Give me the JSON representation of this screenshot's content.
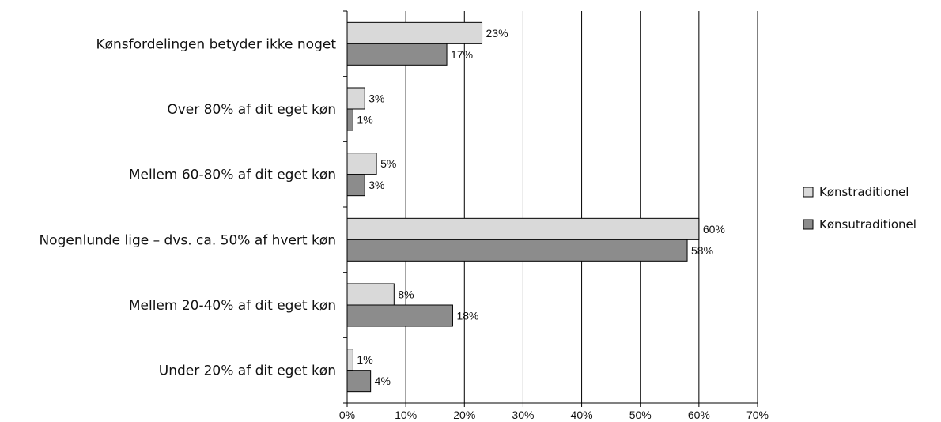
{
  "chart_data": {
    "type": "bar",
    "orientation": "horizontal",
    "categories": [
      "Kønsfordelingen betyder ikke noget",
      "Over 80% af dit eget køn",
      "Mellem 60-80% af dit eget køn",
      "Nogenlunde lige – dvs. ca. 50% af hvert køn",
      "Mellem 20-40% af dit eget køn",
      "Under 20% af dit eget køn"
    ],
    "series": [
      {
        "name": "Kønstraditionel",
        "color": "#d9d9d9",
        "values": [
          23,
          3,
          5,
          60,
          8,
          1
        ],
        "labels": [
          "23%",
          "3%",
          "5%",
          "60%",
          "8%",
          "1%"
        ]
      },
      {
        "name": "Kønsutraditionel",
        "color": "#8c8c8c",
        "values": [
          17,
          1,
          3,
          58,
          18,
          4
        ],
        "labels": [
          "17%",
          "1%",
          "3%",
          "58%",
          "18%",
          "4%"
        ]
      }
    ],
    "xlim": [
      0,
      70
    ],
    "xticks": [
      "0%",
      "10%",
      "20%",
      "30%",
      "40%",
      "50%",
      "60%",
      "70%"
    ],
    "grid": "vertical",
    "legend_position": "right"
  }
}
